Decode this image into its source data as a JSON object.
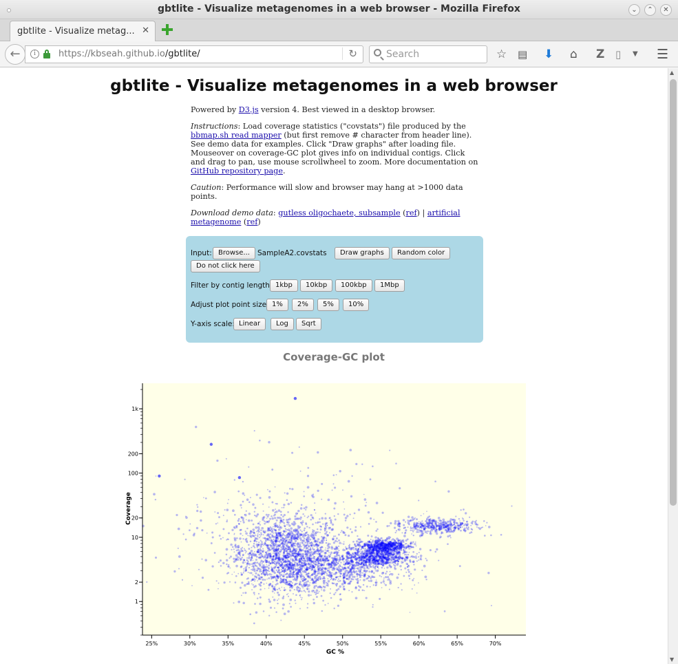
{
  "window": {
    "title": "gbtlite - Visualize metagenomes in a web browser - Mozilla Firefox",
    "btn_min": "⌄",
    "btn_max": "⌃",
    "btn_close": "✕"
  },
  "tab": {
    "label": "gbtlite - Visualize metag...",
    "close": "✕"
  },
  "navbar": {
    "back": "←",
    "url_host": "https://kbseah.github.io",
    "url_path": "/gbtlite/",
    "reload": "↻",
    "search_placeholder": "Search",
    "icons": [
      "star-icon",
      "reading-list-icon",
      "download-icon",
      "home-icon",
      "zotero-icon",
      "pocket-icon",
      "menu-icon"
    ]
  },
  "page": {
    "title": "gbtlite - Visualize metagenomes in a web browser",
    "powered_pre": "Powered by ",
    "powered_link": "D3.js",
    "powered_post": " version 4. Best viewed in a desktop browser.",
    "instr_label": "Instructions",
    "instr_pre": ": Load coverage statistics (\"covstats\") file produced by the ",
    "instr_link": "bbmap.sh read mapper",
    "instr_mid": " (but first remove # character from header line). See demo data for examples. Click \"Draw graphs\" after loading file. Mouseover on coverage-GC plot gives info on individual contigs. Click and drag to pan, use mouse scrollwheel to zoom. More documentation on ",
    "instr_link2": "GitHub repository page",
    "instr_post": ".",
    "caution_label": "Caution",
    "caution_text": ": Performance will slow and browser may hang at >1000 data points.",
    "demo_label": "Download demo data",
    "demo_sep": ": ",
    "demo_link1": "gutless oligochaete, subsample",
    "demo_ref1": "ref",
    "demo_pipe": " | ",
    "demo_link2": "artificial metagenome",
    "demo_ref2": "ref",
    "paren_open": " (",
    "paren_close": ")",
    "paren_close2": ")"
  },
  "controls": {
    "input_label": "Input:",
    "browse": "Browse...",
    "filename": "SampleA2.covstats",
    "draw": "Draw graphs",
    "random_color": "Random color",
    "donot": "Do not click here",
    "filter_label": "Filter by contig length:",
    "filter_opts": [
      "1kbp",
      "10kbp",
      "100kbp",
      "1Mbp"
    ],
    "size_label": "Adjust plot point size:",
    "size_opts": [
      "1%",
      "2%",
      "5%",
      "10%"
    ],
    "yscale_label": "Y-axis scale:",
    "yscale_opts": [
      "Linear",
      "Log",
      "Sqrt"
    ]
  },
  "plot_title": "Coverage-GC plot",
  "chart_data": {
    "type": "scatter",
    "xlabel": "GC %",
    "ylabel": "Coverage",
    "xlim": [
      23.8,
      74
    ],
    "ylim": [
      0.3,
      2500
    ],
    "yscale": "log",
    "x_ticks": [
      "25%",
      "30%",
      "35%",
      "40%",
      "45%",
      "50%",
      "55%",
      "60%",
      "65%",
      "70%"
    ],
    "x_tick_values": [
      25,
      30,
      35,
      40,
      45,
      50,
      55,
      60,
      65,
      70
    ],
    "y_ticks": [
      "1",
      "2",
      "10",
      "20",
      "100",
      "200",
      "1k"
    ],
    "y_tick_values": [
      1,
      2,
      10,
      20,
      100,
      200,
      1000
    ],
    "background": "#ffffe8",
    "point_color": "#0000ff",
    "clusters": [
      {
        "gc": 42.5,
        "gc_sd": 3.6,
        "cov": 5.5,
        "cov_sd_log10": 0.32,
        "n": 1700
      },
      {
        "gc": 49,
        "gc_sd": 4.5,
        "cov": 3.2,
        "cov_sd_log10": 0.18,
        "n": 800
      },
      {
        "gc": 55.5,
        "gc_sd": 1.6,
        "cov": 7.2,
        "cov_sd_log10": 0.05,
        "n": 700
      },
      {
        "gc": 54.5,
        "gc_sd": 2.2,
        "cov": 4.8,
        "cov_sd_log10": 0.06,
        "n": 600
      },
      {
        "gc": 62.5,
        "gc_sd": 2.6,
        "cov": 15,
        "cov_sd_log10": 0.06,
        "n": 400
      },
      {
        "gc": 45,
        "gc_sd": 9,
        "cov": 12,
        "cov_sd_log10": 0.55,
        "n": 350
      }
    ],
    "outliers": [
      {
        "gc": 26,
        "cov": 90
      },
      {
        "gc": 43.8,
        "cov": 1450
      },
      {
        "gc": 32.8,
        "cov": 280
      },
      {
        "gc": 36.5,
        "cov": 85
      }
    ]
  }
}
